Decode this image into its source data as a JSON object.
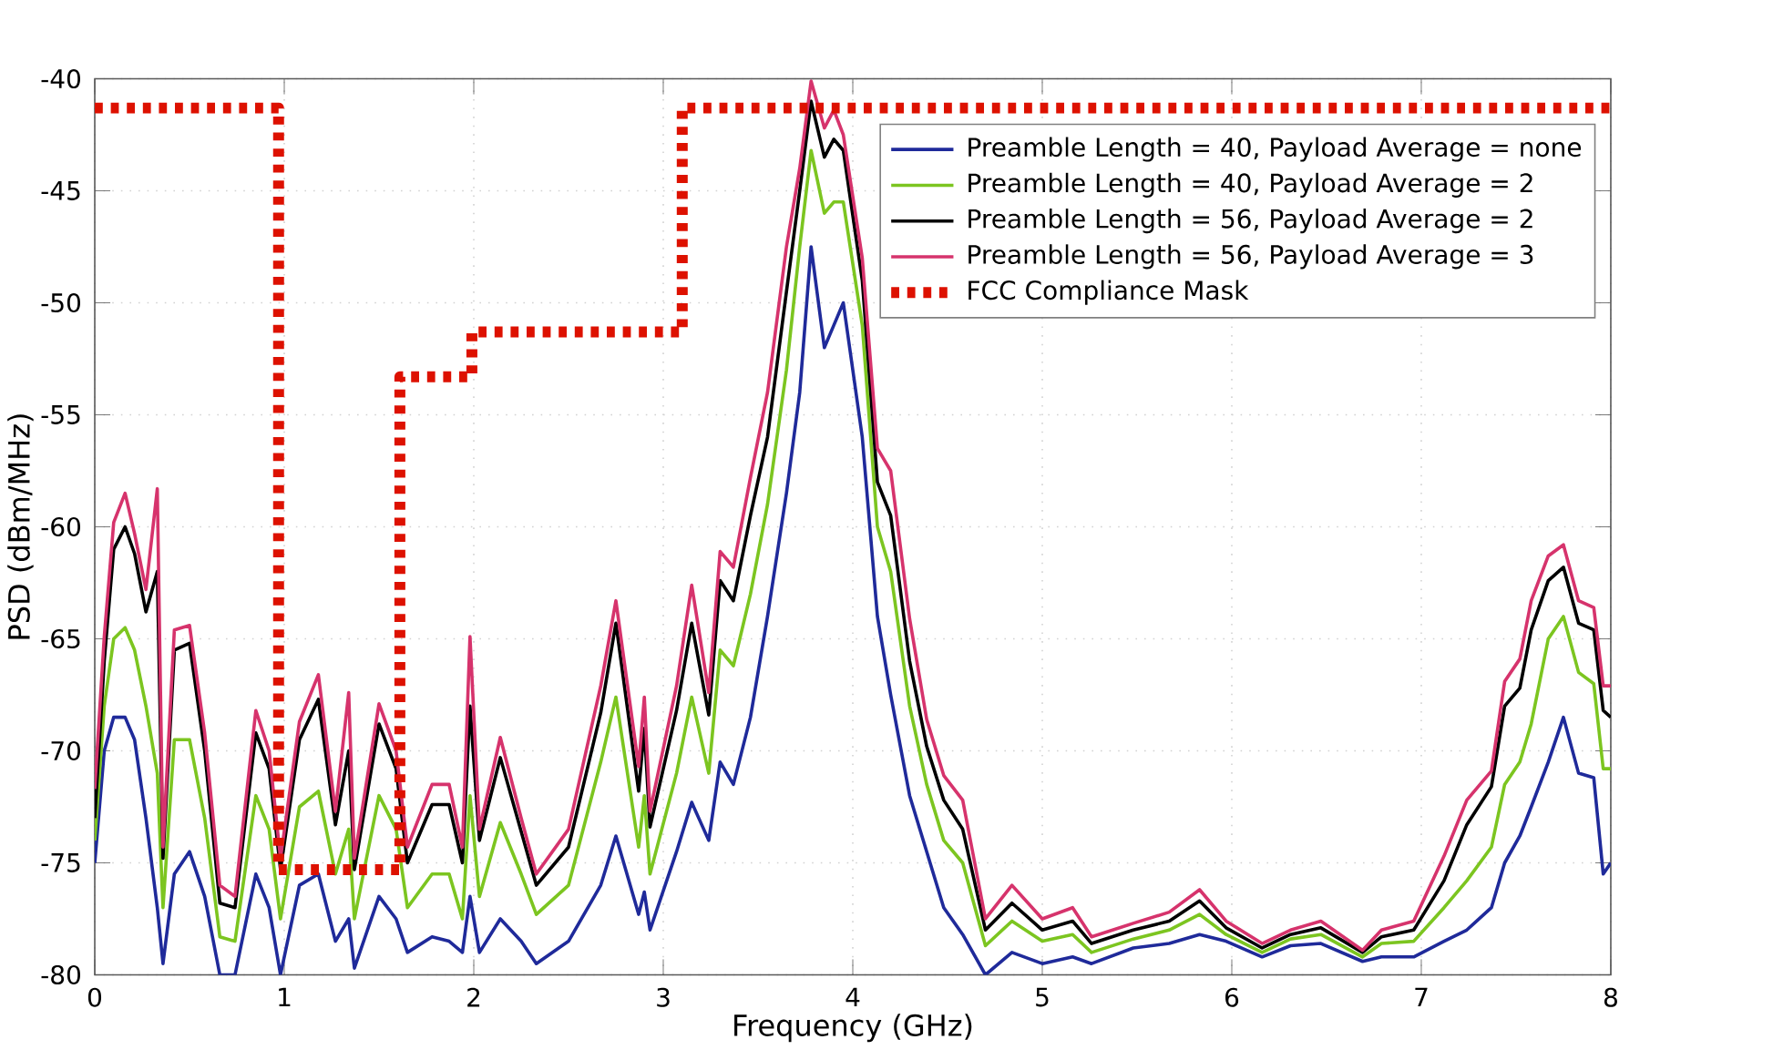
{
  "chart_data": {
    "type": "line",
    "xlabel": "Frequency (GHz)",
    "ylabel": "PSD (dBm/MHz)",
    "xlim": [
      0,
      8
    ],
    "ylim": [
      -80,
      -40
    ],
    "xticks": [
      0,
      1,
      2,
      3,
      4,
      5,
      6,
      7,
      8
    ],
    "yticks": [
      -80,
      -75,
      -70,
      -65,
      -60,
      -55,
      -50,
      -45,
      -40
    ],
    "grid": true,
    "legend": "top right",
    "marker": "none",
    "x": [
      0.0,
      0.05,
      0.1,
      0.16,
      0.21,
      0.27,
      0.33,
      0.36,
      0.42,
      0.5,
      0.58,
      0.66,
      0.74,
      0.85,
      0.92,
      0.98,
      1.08,
      1.18,
      1.27,
      1.34,
      1.37,
      1.5,
      1.59,
      1.65,
      1.78,
      1.87,
      1.94,
      1.98,
      2.03,
      2.14,
      2.25,
      2.33,
      2.5,
      2.67,
      2.75,
      2.87,
      2.9,
      2.93,
      3.07,
      3.15,
      3.24,
      3.3,
      3.37,
      3.46,
      3.55,
      3.65,
      3.72,
      3.78,
      3.85,
      3.9,
      3.95,
      4.05,
      4.13,
      4.2,
      4.3,
      4.39,
      4.48,
      4.58,
      4.7,
      4.84,
      5.0,
      5.16,
      5.26,
      5.48,
      5.67,
      5.83,
      5.97,
      6.16,
      6.31,
      6.47,
      6.69,
      6.79,
      6.96,
      7.12,
      7.24,
      7.37,
      7.44,
      7.52,
      7.58,
      7.67,
      7.75,
      7.83,
      7.91,
      7.96,
      8.0
    ],
    "series": [
      {
        "name": "Preamble Length = 40, Payload Average = none",
        "color": "#1f2a9a",
        "line_style": "solid",
        "values": [
          -75,
          -70,
          -68.5,
          -68.5,
          -69.5,
          -73,
          -77,
          -79.5,
          -75.5,
          -74.5,
          -76.5,
          -80,
          -80,
          -75.5,
          -77,
          -80,
          -76,
          -75.5,
          -78.5,
          -77.5,
          -79.7,
          -76.5,
          -77.5,
          -79,
          -78.3,
          -78.5,
          -79,
          -76.5,
          -79,
          -77.5,
          -78.5,
          -79.5,
          -78.5,
          -76,
          -73.8,
          -77.3,
          -76.3,
          -78,
          -74.5,
          -72.3,
          -74,
          -70.5,
          -71.5,
          -68.5,
          -64,
          -58.5,
          -54,
          -47.5,
          -52,
          -51,
          -50,
          -56,
          -64,
          -67.5,
          -72,
          -74.5,
          -77,
          -78.2,
          -80,
          -79,
          -79.5,
          -79.2,
          -79.5,
          -78.8,
          -78.6,
          -78.2,
          -78.5,
          -79.2,
          -78.7,
          -78.6,
          -79.4,
          -79.2,
          -79.2,
          -78.5,
          -78,
          -77,
          -75,
          -73.8,
          -72.5,
          -70.5,
          -68.5,
          -71,
          -71.2,
          -75.5,
          -75
        ]
      },
      {
        "name": "Preamble Length = 40, Payload Average = 2",
        "color": "#7cc520",
        "line_style": "solid",
        "values": [
          -74,
          -68,
          -65,
          -64.5,
          -65.5,
          -68,
          -71,
          -77,
          -69.5,
          -69.5,
          -73,
          -78.3,
          -78.5,
          -72,
          -73.5,
          -77.5,
          -72.5,
          -71.8,
          -75.5,
          -73.5,
          -77.5,
          -72,
          -73.5,
          -77,
          -75.5,
          -75.5,
          -77.5,
          -72,
          -76.5,
          -73.2,
          -75.5,
          -77.3,
          -76,
          -70.5,
          -67.6,
          -74.3,
          -72,
          -75.5,
          -71,
          -67.6,
          -71,
          -65.5,
          -66.2,
          -63,
          -59,
          -53,
          -47.5,
          -43.2,
          -46,
          -45.5,
          -45.5,
          -51,
          -60,
          -62,
          -68,
          -71.5,
          -74,
          -75,
          -78.7,
          -77.6,
          -78.5,
          -78.2,
          -79,
          -78.4,
          -78,
          -77.3,
          -78.2,
          -79,
          -78.4,
          -78.2,
          -79.2,
          -78.6,
          -78.5,
          -77,
          -75.8,
          -74.3,
          -71.5,
          -70.5,
          -68.8,
          -65,
          -64,
          -66.5,
          -67,
          -70.8,
          -70.8
        ]
      },
      {
        "name": "Preamble Length = 56, Payload Average = 2",
        "color": "#000000",
        "line_style": "solid",
        "values": [
          -73,
          -66,
          -61,
          -60,
          -61.2,
          -63.8,
          -62,
          -74.8,
          -65.5,
          -65.2,
          -70,
          -76.8,
          -77,
          -69.2,
          -70.8,
          -75.3,
          -69.5,
          -67.7,
          -73.3,
          -70,
          -75.3,
          -68.8,
          -70.8,
          -75,
          -72.4,
          -72.4,
          -75,
          -68,
          -74,
          -70.3,
          -73.6,
          -76,
          -74.3,
          -68.3,
          -64.3,
          -71.8,
          -69,
          -73.4,
          -68.2,
          -64.3,
          -68.4,
          -62.4,
          -63.3,
          -59.5,
          -56,
          -49.5,
          -45,
          -41,
          -43.5,
          -42.7,
          -43.2,
          -49,
          -58,
          -59.5,
          -66,
          -69.8,
          -72.2,
          -73.5,
          -78,
          -76.8,
          -78,
          -77.6,
          -78.6,
          -78,
          -77.6,
          -76.7,
          -77.9,
          -78.8,
          -78.2,
          -77.9,
          -79,
          -78.3,
          -78,
          -75.8,
          -73.3,
          -71.6,
          -68,
          -67.2,
          -64.6,
          -62.4,
          -61.8,
          -64.3,
          -64.6,
          -68.2,
          -68.5
        ]
      },
      {
        "name": "Preamble Length = 56, Payload Average = 3",
        "color": "#d6336c",
        "line_style": "solid",
        "values": [
          -71.7,
          -64.9,
          -59.8,
          -58.5,
          -60.3,
          -62.8,
          -58.3,
          -74.3,
          -64.6,
          -64.4,
          -69.2,
          -76,
          -76.5,
          -68.2,
          -70,
          -74.8,
          -68.7,
          -66.6,
          -72.7,
          -67.4,
          -74.8,
          -67.9,
          -70,
          -74.3,
          -71.5,
          -71.5,
          -74.3,
          -64.9,
          -73.5,
          -69.4,
          -73,
          -75.5,
          -73.5,
          -67.1,
          -63.3,
          -70.7,
          -67.6,
          -72.7,
          -67.1,
          -62.6,
          -67.4,
          -61.1,
          -61.8,
          -57.8,
          -54,
          -47.5,
          -44,
          -40.1,
          -42.2,
          -41.4,
          -42.5,
          -48,
          -56.5,
          -57.5,
          -64.1,
          -68.6,
          -71.1,
          -72.2,
          -77.5,
          -76,
          -77.5,
          -77,
          -78.3,
          -77.7,
          -77.2,
          -76.2,
          -77.6,
          -78.6,
          -78,
          -77.6,
          -78.9,
          -78,
          -77.6,
          -74.7,
          -72.2,
          -70.9,
          -66.9,
          -65.9,
          -63.3,
          -61.3,
          -60.8,
          -63.3,
          -63.6,
          -67.1,
          -67.1
        ]
      },
      {
        "name": "FCC Compliance Mask",
        "color": "#dd1100",
        "line_style": "dotted",
        "x": [
          0,
          0.97,
          0.97,
          1.61,
          1.61,
          1.99,
          1.99,
          3.1,
          3.1,
          8
        ],
        "values": [
          -41.3,
          -41.3,
          -75.3,
          -75.3,
          -53.3,
          -53.3,
          -51.3,
          -51.3,
          -41.3,
          -41.3
        ]
      }
    ]
  }
}
